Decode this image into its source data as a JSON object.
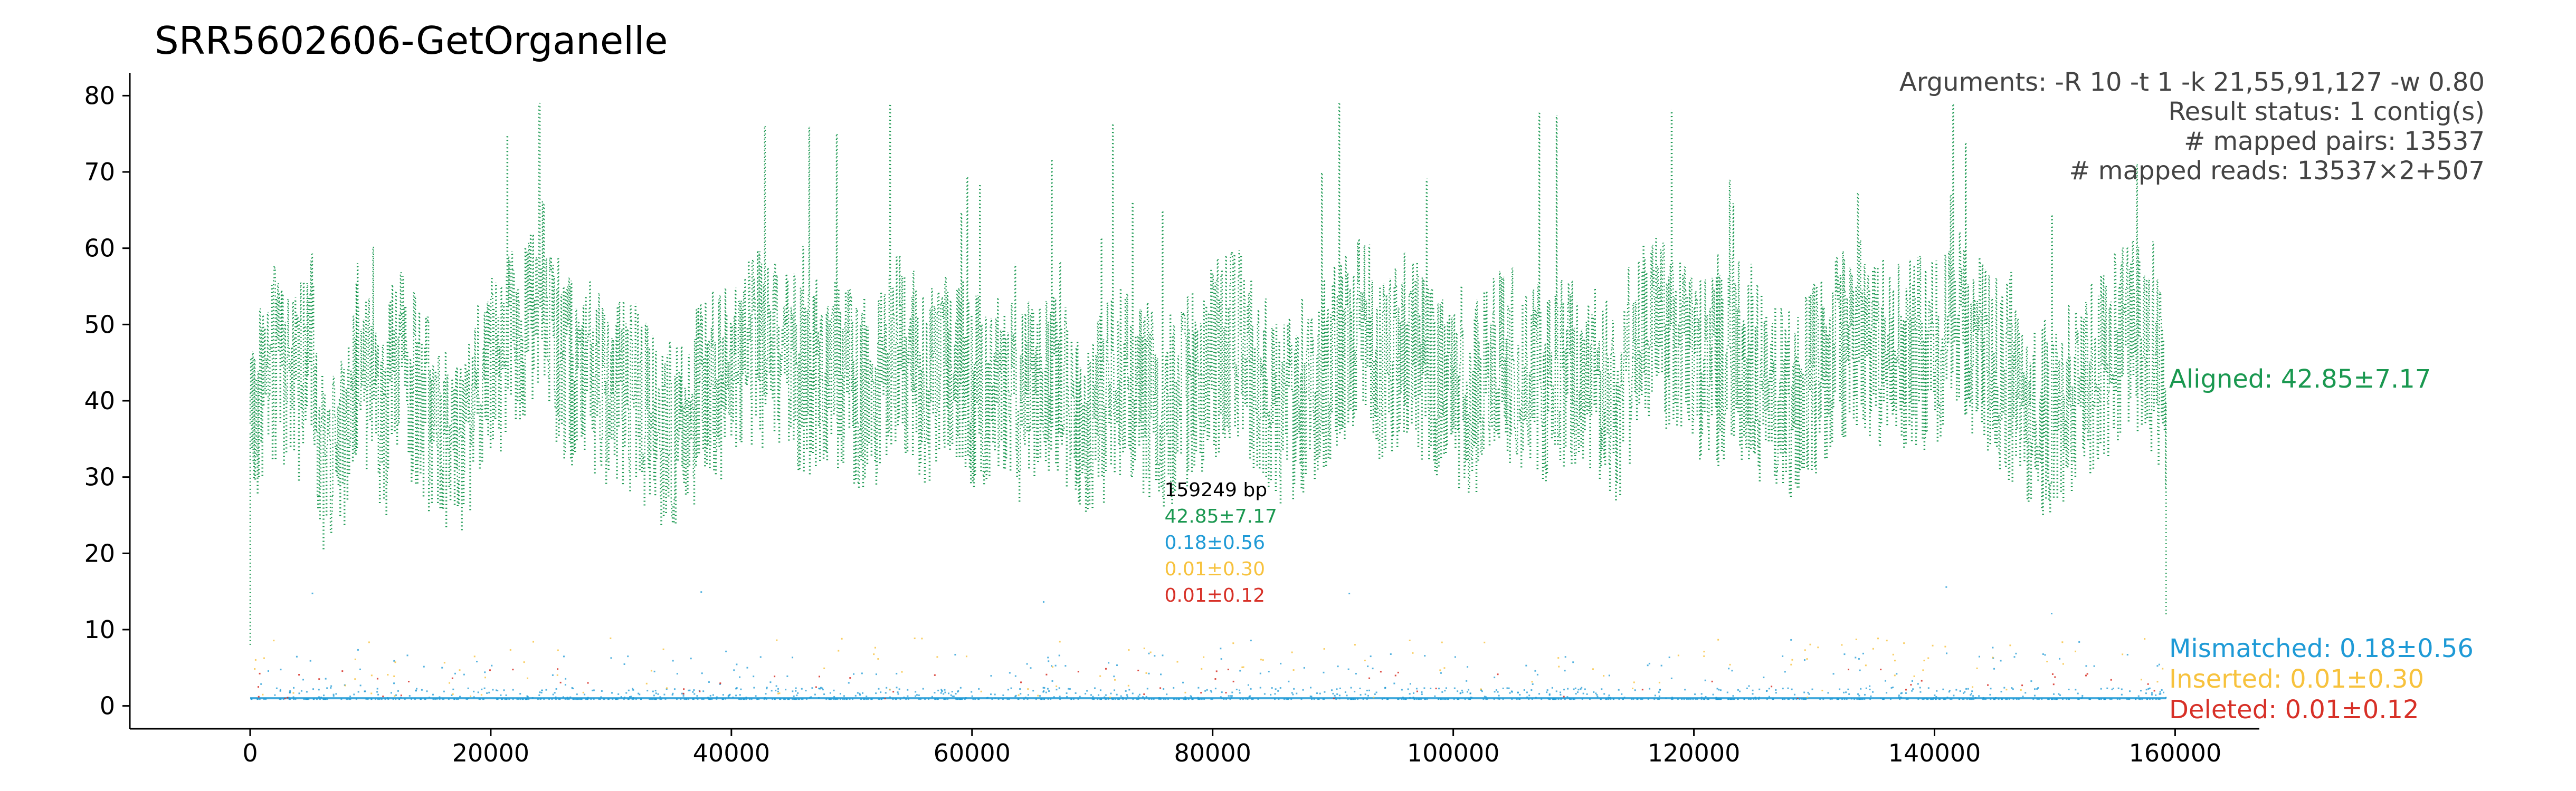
{
  "chart_data": {
    "type": "scatter",
    "title": "SRR5602606-GetOrganelle",
    "xlabel": "",
    "ylabel": "",
    "xlim": [
      -10000,
      167000
    ],
    "ylim": [
      -3,
      83
    ],
    "x_ticks": [
      0,
      20000,
      40000,
      60000,
      80000,
      100000,
      120000,
      140000,
      160000
    ],
    "y_ticks": [
      0,
      10,
      20,
      30,
      40,
      50,
      60,
      70,
      80
    ],
    "grid": false,
    "arguments": [
      "Arguments: -R 10 -t 1 -k 21,55,91,127 -w 0.80",
      "Result status: 1 contig(s)",
      "# mapped pairs: 13537",
      "# mapped reads: 13537×2+507"
    ],
    "contig_annotation": {
      "x": 76000,
      "lines": [
        {
          "text": "159249 bp",
          "color": "#000000"
        },
        {
          "text": "42.85±7.17",
          "color": "#1a9850"
        },
        {
          "text": "0.18±0.56",
          "color": "#1e9ad6"
        },
        {
          "text": "0.01±0.30",
          "color": "#f7c23d"
        },
        {
          "text": "0.01±0.12",
          "color": "#d73027"
        }
      ]
    },
    "series": [
      {
        "name": "Aligned: 42.85±7.17",
        "key": "aligned",
        "color": "#1a9850",
        "mean": 42.85,
        "sd": 7.17
      },
      {
        "name": "Mismatched: 0.18±0.56",
        "key": "mismatched",
        "color": "#1e9ad6",
        "mean": 0.18,
        "sd": 0.56
      },
      {
        "name": "Inserted: 0.01±0.30",
        "key": "inserted",
        "color": "#f7c23d",
        "mean": 0.01,
        "sd": 0.3
      },
      {
        "name": "Deleted: 0.01±0.12",
        "key": "deleted",
        "color": "#d73027",
        "mean": 0.01,
        "sd": 0.12
      }
    ],
    "contig_length": 159249,
    "aligned_profile": [
      [
        0,
        37
      ],
      [
        2000,
        45
      ],
      [
        4000,
        41
      ],
      [
        5000,
        50
      ],
      [
        6000,
        30
      ],
      [
        8000,
        37
      ],
      [
        9000,
        47
      ],
      [
        11000,
        35
      ],
      [
        12000,
        45
      ],
      [
        14000,
        41
      ],
      [
        16000,
        35
      ],
      [
        18000,
        36
      ],
      [
        20000,
        45
      ],
      [
        22000,
        48
      ],
      [
        24000,
        55
      ],
      [
        26000,
        44
      ],
      [
        28000,
        43
      ],
      [
        30000,
        41
      ],
      [
        32000,
        40
      ],
      [
        34000,
        35
      ],
      [
        36000,
        37
      ],
      [
        38000,
        41
      ],
      [
        40000,
        44
      ],
      [
        42000,
        47
      ],
      [
        44000,
        45
      ],
      [
        46000,
        43
      ],
      [
        48000,
        44
      ],
      [
        50000,
        42
      ],
      [
        52000,
        40
      ],
      [
        54000,
        47
      ],
      [
        56000,
        42
      ],
      [
        58000,
        44
      ],
      [
        60000,
        41
      ],
      [
        62000,
        43
      ],
      [
        64000,
        39
      ],
      [
        66000,
        43
      ],
      [
        68000,
        39
      ],
      [
        70000,
        37
      ],
      [
        72000,
        42
      ],
      [
        74000,
        41
      ],
      [
        76000,
        38
      ],
      [
        78000,
        41
      ],
      [
        80000,
        45
      ],
      [
        82000,
        48
      ],
      [
        84000,
        42
      ],
      [
        86000,
        37
      ],
      [
        88000,
        42
      ],
      [
        90000,
        45
      ],
      [
        92000,
        50
      ],
      [
        94000,
        45
      ],
      [
        96000,
        47
      ],
      [
        98000,
        44
      ],
      [
        100000,
        39
      ],
      [
        102000,
        41
      ],
      [
        104000,
        45
      ],
      [
        106000,
        44
      ],
      [
        108000,
        42
      ],
      [
        110000,
        44
      ],
      [
        112000,
        42
      ],
      [
        114000,
        38
      ],
      [
        116000,
        50
      ],
      [
        118000,
        47
      ],
      [
        120000,
        44
      ],
      [
        122000,
        44
      ],
      [
        124000,
        43
      ],
      [
        126000,
        42
      ],
      [
        128000,
        40
      ],
      [
        130000,
        43
      ],
      [
        132000,
        47
      ],
      [
        134000,
        49
      ],
      [
        136000,
        46
      ],
      [
        138000,
        46
      ],
      [
        140000,
        47
      ],
      [
        142000,
        50
      ],
      [
        144000,
        45
      ],
      [
        146000,
        43
      ],
      [
        148000,
        38
      ],
      [
        150000,
        38
      ],
      [
        152000,
        42
      ],
      [
        154000,
        44
      ],
      [
        156000,
        50
      ],
      [
        158000,
        46
      ],
      [
        159249,
        40
      ]
    ]
  }
}
